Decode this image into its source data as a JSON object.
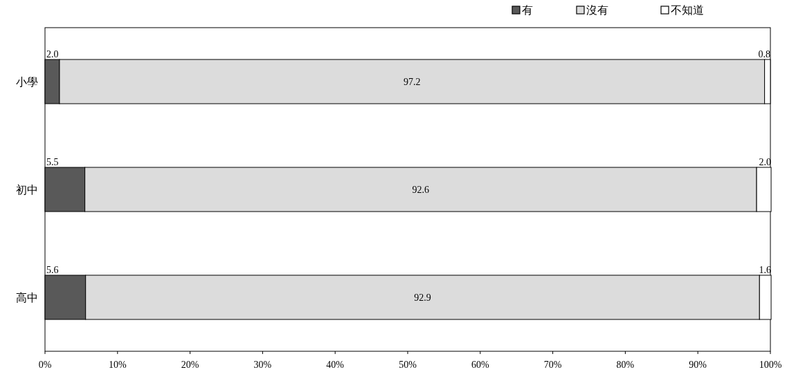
{
  "chart_data": {
    "type": "bar",
    "orientation": "horizontal",
    "stacked": true,
    "categories": [
      "小學",
      "初中",
      "高中"
    ],
    "series": [
      {
        "name": "有",
        "color": "#595959",
        "values": [
          2.0,
          5.5,
          5.6
        ],
        "value_labels": [
          "2.0",
          "5.5",
          "5.6"
        ]
      },
      {
        "name": "沒有",
        "color": "#dcdcdc",
        "values": [
          97.2,
          92.6,
          92.9
        ],
        "value_labels": [
          "97.2",
          "92.6",
          "92.9"
        ]
      },
      {
        "name": "不知道",
        "color": "#ffffff",
        "values": [
          0.8,
          2.0,
          1.6
        ],
        "value_labels": [
          "0.8",
          "2.0",
          "1.6"
        ]
      }
    ],
    "xlim": [
      0,
      100
    ],
    "xticks": [
      {
        "value": 0,
        "label": "0%"
      },
      {
        "value": 10,
        "label": "10%"
      },
      {
        "value": 20,
        "label": "20%"
      },
      {
        "value": 30,
        "label": "30%"
      },
      {
        "value": 40,
        "label": "40%"
      },
      {
        "value": 50,
        "label": "50%"
      },
      {
        "value": 60,
        "label": "60%"
      },
      {
        "value": 70,
        "label": "70%"
      },
      {
        "value": 80,
        "label": "80%"
      },
      {
        "value": 90,
        "label": "90%"
      },
      {
        "value": 100,
        "label": "100%"
      }
    ],
    "legend": "top right",
    "grid": false
  }
}
